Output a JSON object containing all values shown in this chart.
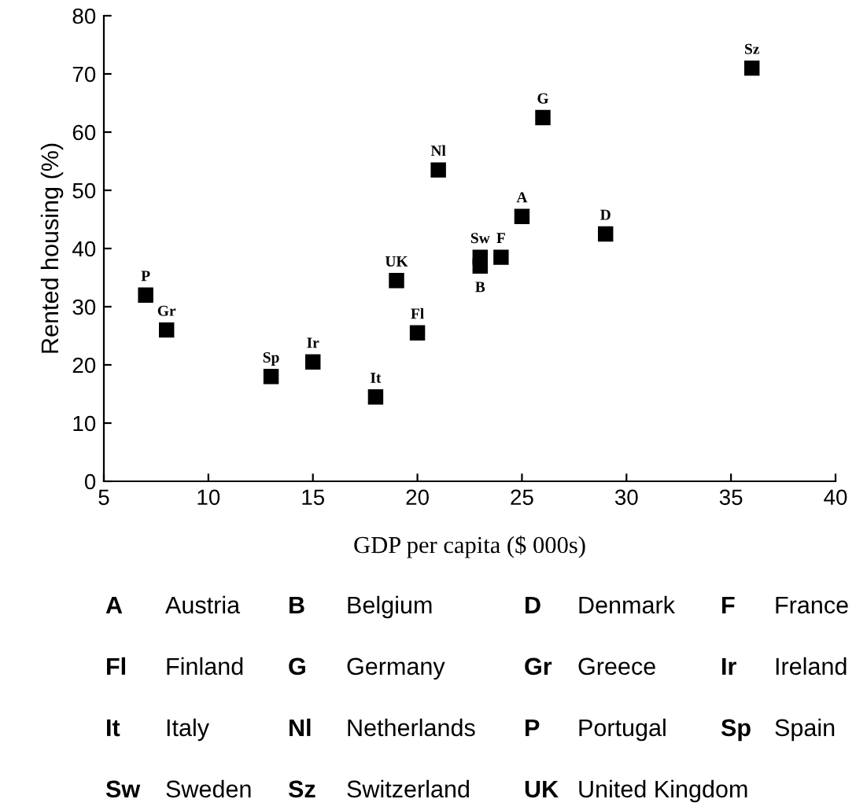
{
  "chart_data": {
    "type": "scatter",
    "xlabel": "GDP per capita ($ 000s)",
    "ylabel": "Rented housing (%)",
    "x": [
      7,
      8,
      13,
      15,
      18,
      19,
      20,
      21,
      23,
      23,
      24,
      25,
      26,
      29,
      36
    ],
    "values": [
      32,
      26,
      18,
      20.5,
      14.5,
      34.5,
      25.5,
      53.5,
      38.5,
      37,
      38.5,
      45.5,
      62.5,
      42.5,
      71
    ],
    "value_labels": [
      "P",
      "Gr",
      "Sp",
      "Ir",
      "It",
      "UK",
      "Fl",
      "Nl",
      "Sw",
      "B",
      "F",
      "A",
      "G",
      "D",
      "Sz"
    ],
    "color": "#000000",
    "marker": "square",
    "grid": false,
    "legend": false,
    "xlim": [
      5,
      40
    ],
    "xticks": [
      5,
      10,
      15,
      20,
      25,
      30,
      35,
      40
    ],
    "ylim": [
      0,
      80
    ],
    "yticks": [
      0,
      10,
      20,
      30,
      40,
      50,
      60,
      70,
      80
    ],
    "annotations": [
      "A Austria",
      "B Belgium",
      "D Denmark",
      "F France",
      "Fl Finland",
      "G Germany",
      "Gr Greece",
      "Ir Ireland",
      "It Italy",
      "Nl Netherlands",
      "P Portugal",
      "Sp Spain",
      "Sw Sweden",
      "Sz Switzerland",
      "UK United Kingdom"
    ]
  }
}
